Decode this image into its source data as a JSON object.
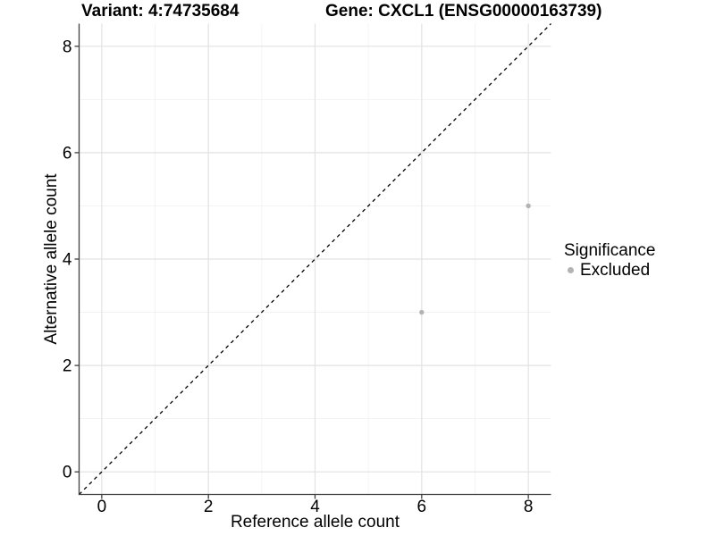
{
  "header": {
    "variant_title": "Variant: 4:74735684",
    "gene_title": "Gene: CXCL1 (ENSG00000163739)"
  },
  "legend": {
    "title": "Significance",
    "items": [
      {
        "label": "Excluded",
        "color": "#b3b3b3"
      }
    ]
  },
  "chart_data": {
    "type": "scatter",
    "title_left": "Variant: 4:74735684",
    "title_right": "Gene: CXCL1 (ENSG00000163739)",
    "xlabel": "Reference allele count",
    "ylabel": "Alternative allele count",
    "xlim": [
      -0.425,
      8.425
    ],
    "ylim": [
      -0.425,
      8.425
    ],
    "x_ticks": [
      0,
      2,
      4,
      6,
      8
    ],
    "y_ticks": [
      0,
      2,
      4,
      6,
      8
    ],
    "x_minor_ticks": [
      1,
      3,
      5,
      7
    ],
    "y_minor_ticks": [
      1,
      3,
      5,
      7
    ],
    "grid": "on",
    "legend_position": "right",
    "series": [
      {
        "name": "Excluded",
        "color": "#b3b3b3",
        "points": [
          {
            "x": 6,
            "y": 3
          },
          {
            "x": 8,
            "y": 5
          }
        ]
      }
    ],
    "reference_line": {
      "kind": "identity",
      "equation": "y = x",
      "style": "dashed",
      "color": "#000000"
    }
  },
  "colors": {
    "background": "#ffffff",
    "axis": "#404040",
    "grid_major": "#e2e2e2",
    "grid_minor": "#f1f1f1",
    "point": "#b3b3b3",
    "text": "#000000"
  }
}
